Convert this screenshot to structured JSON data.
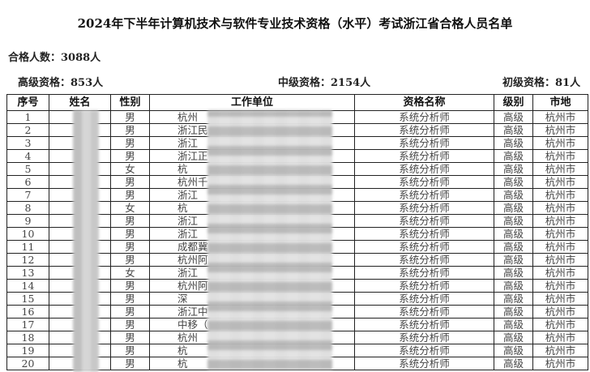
{
  "title": "2024年下半年计算机技术与软件专业技术资格（水平）考试浙江省合格人员名单",
  "total": "合格人数：3088人",
  "summary": {
    "senior": "高级资格：853人",
    "intermediate": "中级资格：2154人",
    "junior": "初级资格：81人"
  },
  "columns": [
    "序号",
    "姓名",
    "性别",
    "工作单位",
    "资格名称",
    "级别",
    "市地"
  ],
  "rows": [
    {
      "no": "1",
      "name": "张",
      "gender": "男",
      "work": "杭州",
      "qual": "系统分析师",
      "level": "高级",
      "city": "杭州市"
    },
    {
      "no": "2",
      "name": "",
      "gender": "男",
      "work": "浙江民",
      "qual": "系统分析师",
      "level": "高级",
      "city": "杭州市"
    },
    {
      "no": "3",
      "name": "朱",
      "gender": "男",
      "work": "浙江",
      "qual": "系统分析师",
      "level": "高级",
      "city": "杭州市"
    },
    {
      "no": "4",
      "name": "潘",
      "gender": "男",
      "work": "浙江正",
      "qual": "系统分析师",
      "level": "高级",
      "city": "杭州市"
    },
    {
      "no": "5",
      "name": "卢",
      "gender": "女",
      "work": "杭",
      "qual": "系统分析师",
      "level": "高级",
      "city": "杭州市"
    },
    {
      "no": "6",
      "name": "",
      "gender": "男",
      "work": "杭州千",
      "qual": "系统分析师",
      "level": "高级",
      "city": "杭州市"
    },
    {
      "no": "7",
      "name": "余",
      "gender": "男",
      "work": "浙江",
      "qual": "系统分析师",
      "level": "高级",
      "city": "杭州市"
    },
    {
      "no": "8",
      "name": "刘",
      "gender": "女",
      "work": "杭",
      "qual": "系统分析师",
      "level": "高级",
      "city": "杭州市"
    },
    {
      "no": "9",
      "name": "李",
      "gender": "男",
      "work": "浙江",
      "qual": "系统分析师",
      "level": "高级",
      "city": "杭州市"
    },
    {
      "no": "10",
      "name": "吕",
      "gender": "男",
      "work": "浙江",
      "qual": "系统分析师",
      "level": "高级",
      "city": "杭州市"
    },
    {
      "no": "11",
      "name": "",
      "gender": "男",
      "work": "成都冀",
      "qual": "系统分析师",
      "level": "高级",
      "city": "杭州市"
    },
    {
      "no": "12",
      "name": "阮",
      "gender": "男",
      "work": "杭州阿",
      "qual": "系统分析师",
      "level": "高级",
      "city": "杭州市"
    },
    {
      "no": "13",
      "name": "李",
      "gender": "女",
      "work": "浙江",
      "qual": "系统分析师",
      "level": "高级",
      "city": "杭州市"
    },
    {
      "no": "14",
      "name": "",
      "gender": "男",
      "work": "杭州阿",
      "qual": "系统分析师",
      "level": "高级",
      "city": "杭州市"
    },
    {
      "no": "15",
      "name": "夏",
      "gender": "男",
      "work": "深",
      "qual": "系统分析师",
      "level": "高级",
      "city": "杭州市"
    },
    {
      "no": "16",
      "name": "杨",
      "gender": "男",
      "work": "浙江中",
      "qual": "系统分析师",
      "level": "高级",
      "city": "杭州市"
    },
    {
      "no": "17",
      "name": "",
      "gender": "男",
      "work": "中移（",
      "qual": "系统分析师",
      "level": "高级",
      "city": "杭州市"
    },
    {
      "no": "18",
      "name": "",
      "gender": "男",
      "work": "杭州",
      "qual": "系统分析师",
      "level": "高级",
      "city": "杭州市"
    },
    {
      "no": "19",
      "name": "邢",
      "gender": "男",
      "work": "杭",
      "qual": "系统分析师",
      "level": "高级",
      "city": "杭州市"
    },
    {
      "no": "20",
      "name": "",
      "gender": "男",
      "work": "杭",
      "qual": "系统分析师",
      "level": "高级",
      "city": "杭州市"
    }
  ]
}
